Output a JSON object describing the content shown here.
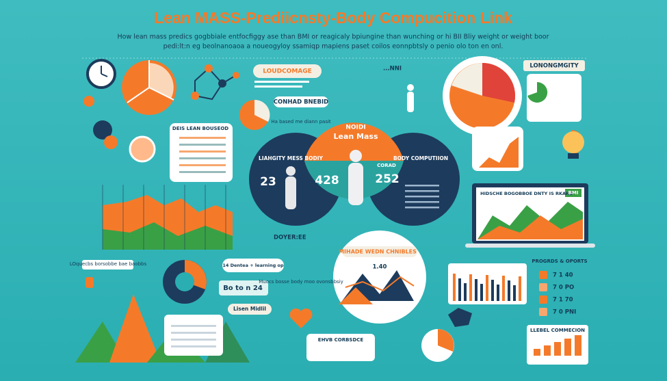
{
  "header": {
    "title": "Lean MASS-Prediicnsty-Body Compucition Link",
    "subtitle": [
      "How lean mass predics gogbbiale entfocfiggy ase than BMI or reagicaly bpiungine than wunching or hi BII Bliy weight or weight boor",
      "pedi:lt:n eg beolnanoaoa a noueogyloy ssamiqp mapiens paset coilos eonnpbtsly o penio olo ton en onl."
    ]
  },
  "labels": {
    "tag_left": "LOUDCOMAGE",
    "tag_left_sub": "CONHAD BNEBID",
    "tag_right": "LONONGMGITY",
    "nni": "...NNI",
    "card_title": "DEIS LEAN BOUSEOD",
    "note_top": "Ha based me diann pasit",
    "doyer": "DOYER:EE",
    "laptop_title": "HIDSCHE BOGOBBOE DNTY IS RKAHD",
    "laptop_badge": "BMI",
    "note_left": "LOquecbs borsobbe bae baobbs",
    "mid_note": "Muocs bosse body moo ovonsbbsiy",
    "box_a": "Bo to n 24",
    "box_b": "14 Dentea + learning op",
    "box_c": "Lisen Midlil",
    "bottom_note": "EHVB CORBSDCE"
  },
  "venn": {
    "center_label": "NOIDI",
    "center_title": "Lean Mass",
    "left_title": "LIAHGITY MESS BODIY",
    "left_value": "23",
    "center_value": "428",
    "right_title": "BODY COMPUTIION",
    "right_sub": "CORAD",
    "right_value": "252"
  },
  "bottom_center": {
    "title": "MIHADE WEDN CHNIBLES",
    "value": "1.40"
  },
  "stats": {
    "title": "PROGRDS & OPORTS",
    "rows": [
      "7 1 40",
      "7 0 PO",
      "7 1 70",
      "7 0 PNI"
    ]
  },
  "bottom_right": {
    "title": "LLEBEL COMMECION"
  }
}
